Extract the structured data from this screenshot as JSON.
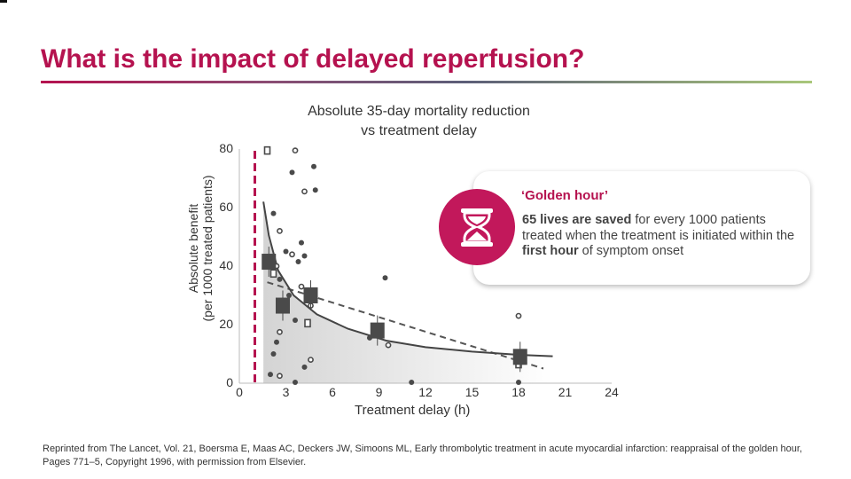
{
  "slide": {
    "title": "What is the impact of delayed reperfusion?",
    "accent_color": "#b5124f",
    "footnote": "Reprinted from The Lancet, Vol. 21, Boersma E, Maas AC, Deckers JW, Simoons ML, Early thrombolytic treatment in acute myocardial infarction: reappraisal of the golden hour, Pages 771–5, Copyright 1996, with permission from Elsevier."
  },
  "callout": {
    "heading": "‘Golden hour’",
    "icon": "hourglass-icon",
    "body_pre": "65 lives are saved",
    "body_mid1": " for every 1000 patients treated when the treatment is initiated within the ",
    "body_strong": "first hour",
    "body_post": " of symptom onset"
  },
  "chart_data": {
    "type": "scatter",
    "title_line1": "Absolute 35-day mortality reduction",
    "title_line2": "vs treatment delay",
    "xlabel": "Treatment delay (h)",
    "ylabel_line1": "Absolute benefit",
    "ylabel_line2": "(per 1000 treated patients)",
    "x_ticks": [
      0,
      3,
      6,
      9,
      12,
      15,
      18,
      21,
      24
    ],
    "y_ticks": [
      0,
      20,
      40,
      60,
      80
    ],
    "xlim": [
      0,
      24
    ],
    "ylim": [
      0,
      80
    ],
    "golden_hour_marker_h": 1,
    "series": [
      {
        "name": "Individual trials (small)",
        "points": [
          [
            1.8,
            79.5
          ],
          [
            3.6,
            79.5
          ],
          [
            3.4,
            72
          ],
          [
            4.8,
            74
          ],
          [
            4.2,
            65.5
          ],
          [
            4.9,
            66
          ],
          [
            2.2,
            58
          ],
          [
            2.6,
            52
          ],
          [
            4.0,
            48
          ],
          [
            3.0,
            45
          ],
          [
            3.4,
            44
          ],
          [
            4.2,
            43.5
          ],
          [
            3.8,
            41.5
          ],
          [
            2.4,
            40
          ],
          [
            2.2,
            37.5
          ],
          [
            2.6,
            35.5
          ],
          [
            4.0,
            33
          ],
          [
            4.6,
            30
          ],
          [
            3.2,
            30
          ],
          [
            4.6,
            26.5
          ],
          [
            3.6,
            21.5
          ],
          [
            4.4,
            20.5
          ],
          [
            2.6,
            17.5
          ],
          [
            2.4,
            14
          ],
          [
            2.2,
            10
          ],
          [
            4.6,
            8
          ],
          [
            4.2,
            5.5
          ],
          [
            2.0,
            3
          ],
          [
            2.6,
            2.5
          ],
          [
            3.6,
            0.3
          ],
          [
            8.4,
            15.5
          ],
          [
            9.6,
            13
          ],
          [
            9.4,
            36
          ],
          [
            11.1,
            0.3
          ],
          [
            18.0,
            23
          ],
          [
            18.0,
            6.5
          ],
          [
            18.0,
            0.3
          ]
        ]
      },
      {
        "name": "Pooled estimates (large)",
        "points": [
          [
            1.9,
            41.5
          ],
          [
            2.8,
            26.5
          ],
          [
            4.6,
            30
          ],
          [
            8.9,
            18
          ],
          [
            18.1,
            9
          ]
        ]
      },
      {
        "name": "Non-linear regression",
        "points": [
          [
            1.55,
            62
          ],
          [
            1.9,
            50.5
          ],
          [
            2.5,
            38.5
          ],
          [
            3.5,
            30
          ],
          [
            5,
            23.5
          ],
          [
            7,
            18.6
          ],
          [
            9.5,
            14.5
          ],
          [
            12,
            12.3
          ],
          [
            15,
            10.8
          ],
          [
            18,
            9.7
          ],
          [
            20.2,
            9.2
          ]
        ]
      },
      {
        "name": "Linear regression",
        "points": [
          [
            1.8,
            34.5
          ],
          [
            19.6,
            5
          ]
        ]
      }
    ]
  }
}
